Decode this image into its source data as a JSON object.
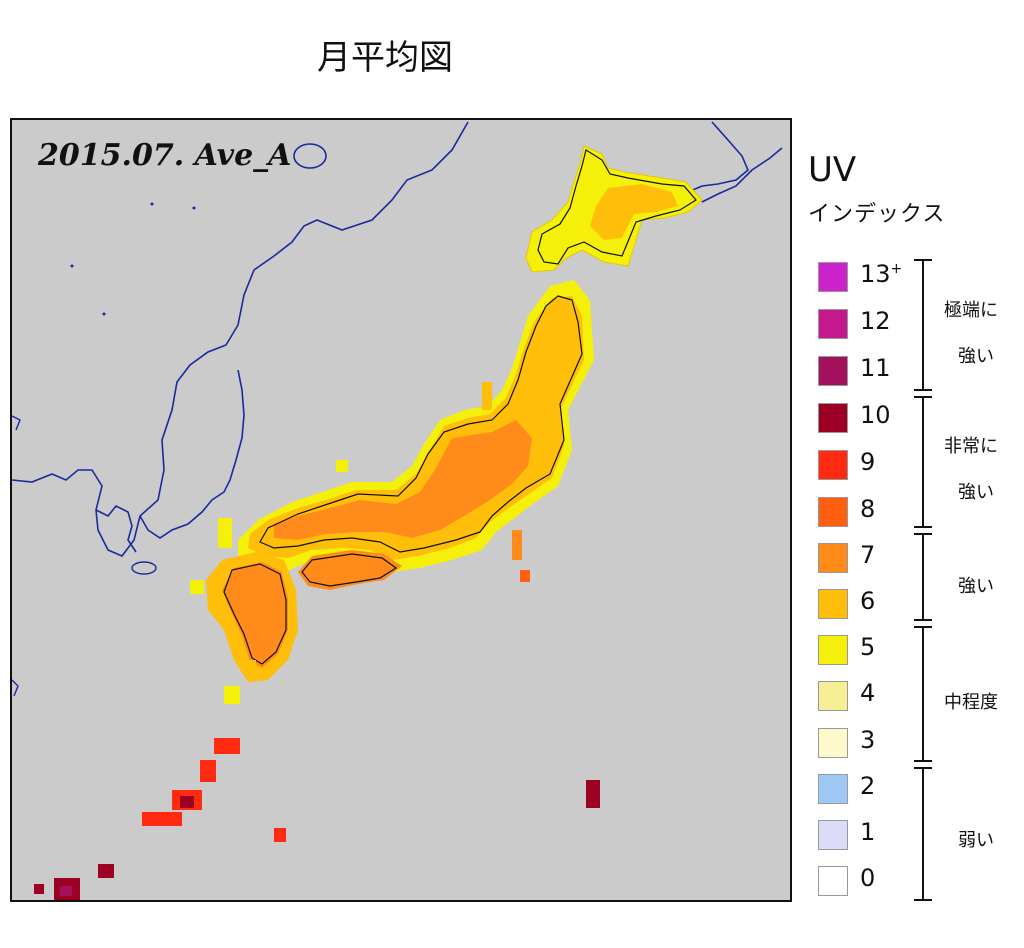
{
  "page_title": "月平均図",
  "map": {
    "label": "2015.07. Ave_A",
    "colors": {
      "sea": "#cbcbcb",
      "coast": "#1a2a9c"
    }
  },
  "legend": {
    "title": "UV",
    "subtitle": "インデックス",
    "levels": [
      {
        "label": "13",
        "sup": "+",
        "color": "#cc22cc"
      },
      {
        "label": "12",
        "sup": "",
        "color": "#c4188e"
      },
      {
        "label": "11",
        "sup": "",
        "color": "#a3105c"
      },
      {
        "label": "10",
        "sup": "",
        "color": "#9c0022"
      },
      {
        "label": "9",
        "sup": "",
        "color": "#ff2a10"
      },
      {
        "label": "8",
        "sup": "",
        "color": "#ff6010"
      },
      {
        "label": "7",
        "sup": "",
        "color": "#ff8c1a"
      },
      {
        "label": "6",
        "sup": "",
        "color": "#ffbe0a"
      },
      {
        "label": "5",
        "sup": "",
        "color": "#f5f00a"
      },
      {
        "label": "4",
        "sup": "",
        "color": "#f6ef96"
      },
      {
        "label": "3",
        "sup": "",
        "color": "#fdf9cb"
      },
      {
        "label": "2",
        "sup": "",
        "color": "#9ec8f4"
      },
      {
        "label": "1",
        "sup": "",
        "color": "#dcdcf8"
      },
      {
        "label": "0",
        "sup": "",
        "color": "#ffffff"
      }
    ],
    "categories": [
      {
        "line1": "極端に",
        "line2": "強い"
      },
      {
        "line1": "非常に",
        "line2": "強い"
      },
      {
        "line1": "",
        "line2": "強い"
      },
      {
        "line1": "",
        "line2": "中程度"
      },
      {
        "line1": "",
        "line2": "弱い"
      }
    ]
  }
}
